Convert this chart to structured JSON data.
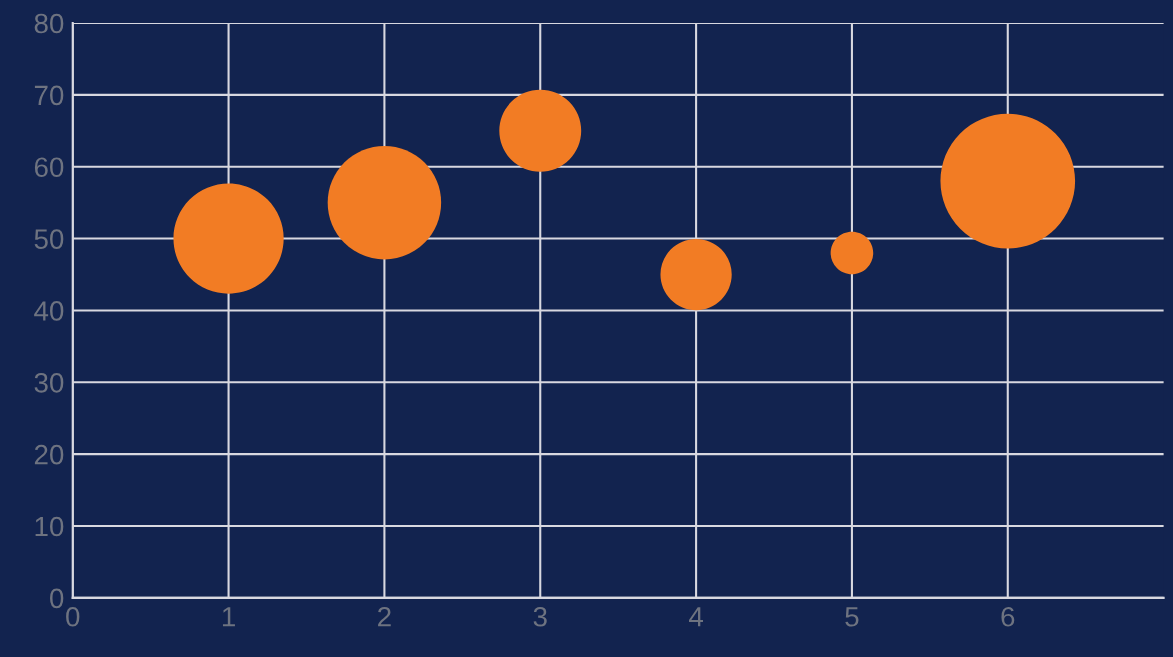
{
  "chart_data": {
    "type": "bubble",
    "x": [
      1,
      2,
      3,
      4,
      5,
      6
    ],
    "series": [
      {
        "color": "#f27c24",
        "values": [
          50,
          55,
          65,
          45,
          48,
          58
        ],
        "sizes": [
          0.67,
          0.71,
          0.37,
          0.28,
          0.1,
          1
        ]
      }
    ],
    "xlim": [
      0,
      7
    ],
    "xticks": [
      0,
      1,
      2,
      3,
      4,
      5,
      6
    ],
    "ylim": [
      0,
      80
    ],
    "yticks": [
      0,
      10,
      20,
      30,
      40,
      50,
      60,
      70,
      80
    ],
    "grid": true,
    "legend": false
  }
}
